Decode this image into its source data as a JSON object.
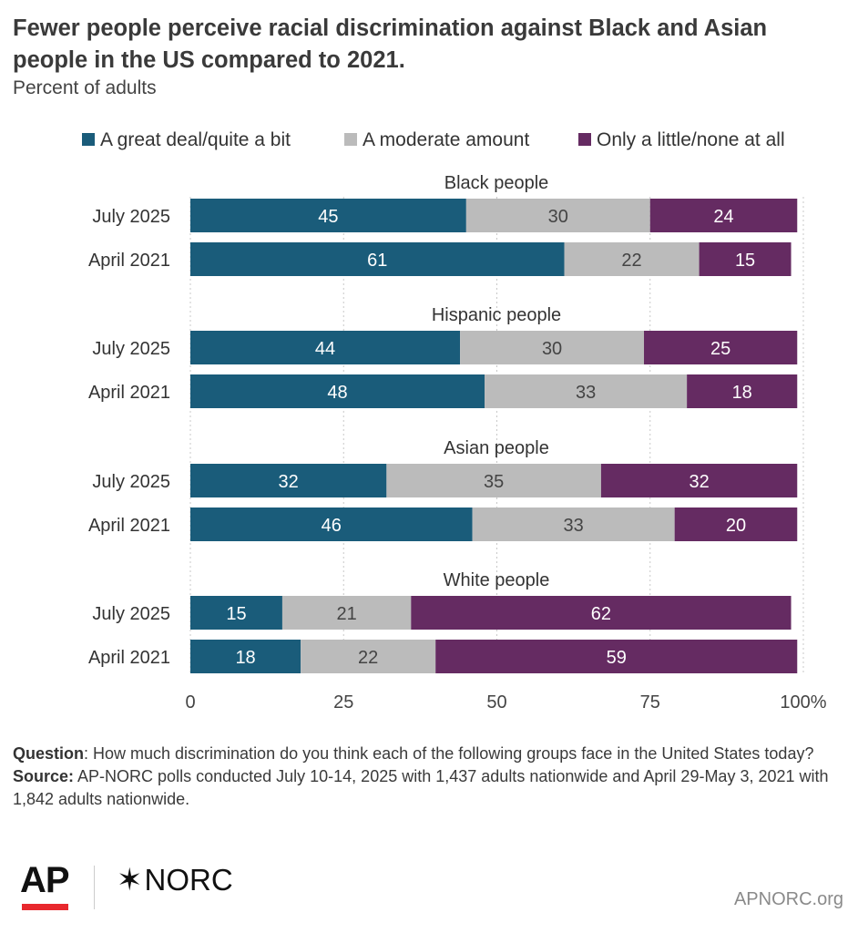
{
  "header": {
    "title": "Fewer people perceive racial discrimination against Black and Asian people in the US compared to 2021.",
    "subtitle": "Percent of adults"
  },
  "chart_data": {
    "type": "bar",
    "orientation": "horizontal",
    "stacked": true,
    "title": "Fewer people perceive racial discrimination against Black and Asian people in the US compared to 2021.",
    "subtitle": "Percent of adults",
    "xlim": [
      0,
      100
    ],
    "xticks": [
      "0",
      "25",
      "50",
      "75",
      "100%"
    ],
    "grid": "vertical dotted",
    "legend_position": "top",
    "series": [
      {
        "name": "A great deal/quite a bit",
        "color": "#1a5c7a"
      },
      {
        "name": "A moderate amount",
        "color": "#bbbbbb"
      },
      {
        "name": "Only a little/none at all",
        "color": "#652b62"
      }
    ],
    "groups": [
      {
        "label": "Black people",
        "rows": [
          {
            "label": "July 2025",
            "values": [
              45,
              30,
              24
            ]
          },
          {
            "label": "April 2021",
            "values": [
              61,
              22,
              15
            ]
          }
        ]
      },
      {
        "label": "Hispanic people",
        "rows": [
          {
            "label": "July 2025",
            "values": [
              44,
              30,
              25
            ]
          },
          {
            "label": "April 2021",
            "values": [
              48,
              33,
              18
            ]
          }
        ]
      },
      {
        "label": "Asian people",
        "rows": [
          {
            "label": "July 2025",
            "values": [
              32,
              35,
              32
            ]
          },
          {
            "label": "April 2021",
            "values": [
              46,
              33,
              20
            ]
          }
        ]
      },
      {
        "label": "White people",
        "rows": [
          {
            "label": "July 2025",
            "values": [
              15,
              21,
              62
            ]
          },
          {
            "label": "April 2021",
            "values": [
              18,
              22,
              59
            ]
          }
        ]
      }
    ]
  },
  "footnote": {
    "question_label": "Question",
    "question_text": ": How much discrimination do you think each of the following groups face in the United States today?",
    "source_label": "Source:",
    "source_text": " AP-NORC polls conducted July 10-14, 2025 with 1,437 adults nationwide and April 29-May 3, 2021 with 1,842 adults nationwide."
  },
  "branding": {
    "ap_logo": "AP",
    "norc_logo": "NORC",
    "site": "APNORC.org"
  }
}
